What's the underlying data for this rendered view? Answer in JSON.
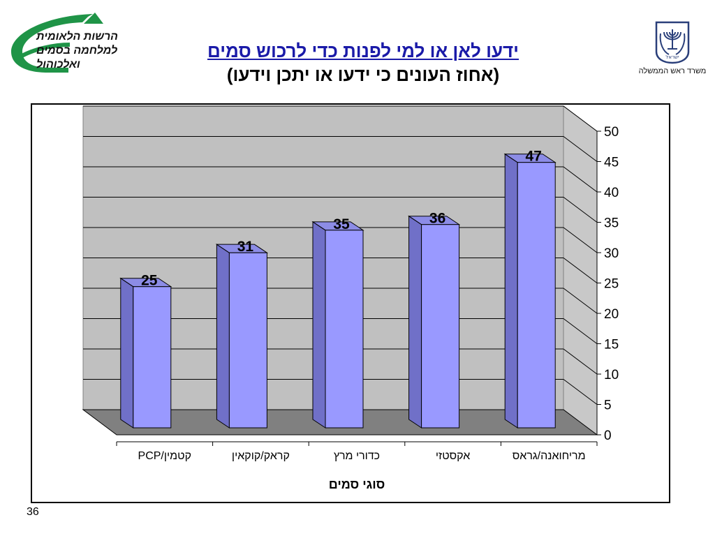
{
  "header": {
    "org_left_lines": [
      "הרשות הלאומית",
      "למלחמה בסמים",
      "ואלכוהול"
    ],
    "org_right_label": "משרד ראש הממשלה",
    "emblem_text": "ישראל",
    "title_line1": "ידעו לאן או למי לפנות כדי לרכוש סמים",
    "title_line2": "(אחוז העונים כי ידעו או יתכן וידעו)"
  },
  "footer": {
    "page_number": "36"
  },
  "colors": {
    "bar_front": "#9999ff",
    "bar_side": "#7070c8",
    "bar_top": "#8c8ce6",
    "back_wall": "#c0c0c0",
    "side_wall": "#c8c8c8",
    "floor": "#808080",
    "title_blue": "#1a1aa8",
    "logo_green": "#1f9447"
  },
  "chart_data": {
    "type": "bar",
    "categories": [
      "קטמין/PCP",
      "קראק/קוקאין",
      "כדורי מרץ",
      "אקסטזי",
      "מריחואנה/גראס"
    ],
    "values": [
      25,
      31,
      35,
      36,
      47
    ],
    "data_labels": [
      "25",
      "31",
      "35",
      "36",
      "47"
    ],
    "xlabel": "סוגי סמים",
    "ylabel": "",
    "ylim": [
      0,
      50
    ],
    "yticks": [
      0,
      5,
      10,
      15,
      20,
      25,
      30,
      35,
      40,
      45,
      50
    ],
    "ytick_labels": [
      "0",
      "5",
      "10",
      "15",
      "20",
      "25",
      "30",
      "35",
      "40",
      "45",
      "50"
    ],
    "grid": true,
    "three_d": true,
    "axis_side": "right"
  }
}
